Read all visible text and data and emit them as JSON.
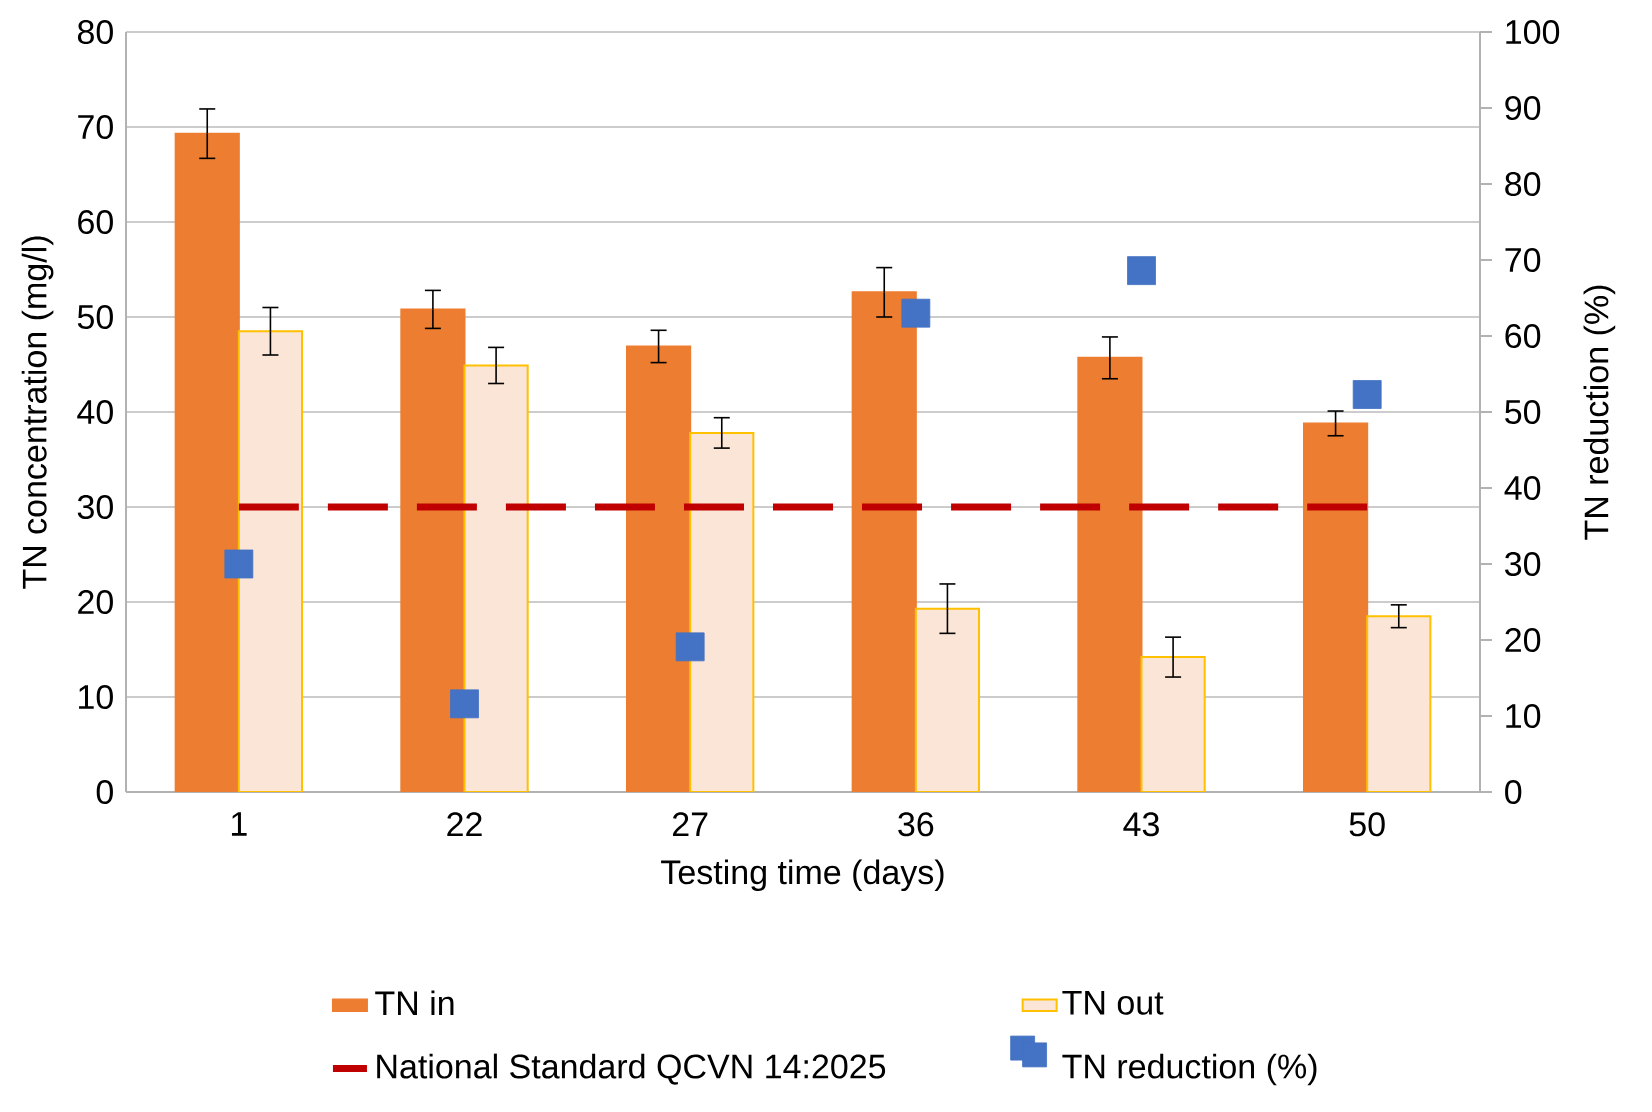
{
  "chart_data": {
    "type": "bar",
    "xlabel": "Testing time (days)",
    "ylabel": "TN concentration (mg/l)",
    "y2label": "TN reduction (%)",
    "categories": [
      "1",
      "22",
      "27",
      "36",
      "43",
      "50"
    ],
    "ylim": [
      0,
      80
    ],
    "yticks": [
      0,
      10,
      20,
      30,
      40,
      50,
      60,
      70,
      80
    ],
    "y2lim": [
      0,
      100
    ],
    "y2ticks": [
      0,
      10,
      20,
      30,
      40,
      50,
      60,
      70,
      80,
      90,
      100
    ],
    "grid": "y",
    "legend": "bottom",
    "series": [
      {
        "name": "TN in",
        "color": "#ed7d31",
        "values": [
          69.3,
          50.8,
          46.9,
          52.6,
          45.7,
          38.8
        ],
        "errors": [
          2.6,
          2.0,
          1.7,
          2.6,
          2.2,
          1.3
        ]
      },
      {
        "name": "TN out",
        "color": "#fbe5d6",
        "values": [
          48.5,
          44.9,
          37.8,
          19.3,
          14.2,
          18.5
        ],
        "errors": [
          2.5,
          1.9,
          1.6,
          2.6,
          2.1,
          1.2
        ]
      },
      {
        "name": "National Standard QCVN 14:2025",
        "type": "line",
        "color": "#c00000",
        "line_style": "dashed",
        "marker": "none",
        "values": [
          30,
          30,
          30,
          30,
          30,
          30
        ]
      },
      {
        "name": "TN reduction (%)",
        "type": "scatter",
        "axis": "y2",
        "color": "#4472c4",
        "marker": "square",
        "values": [
          30,
          11.6,
          19.1,
          63,
          68.6,
          52.3
        ]
      }
    ]
  }
}
